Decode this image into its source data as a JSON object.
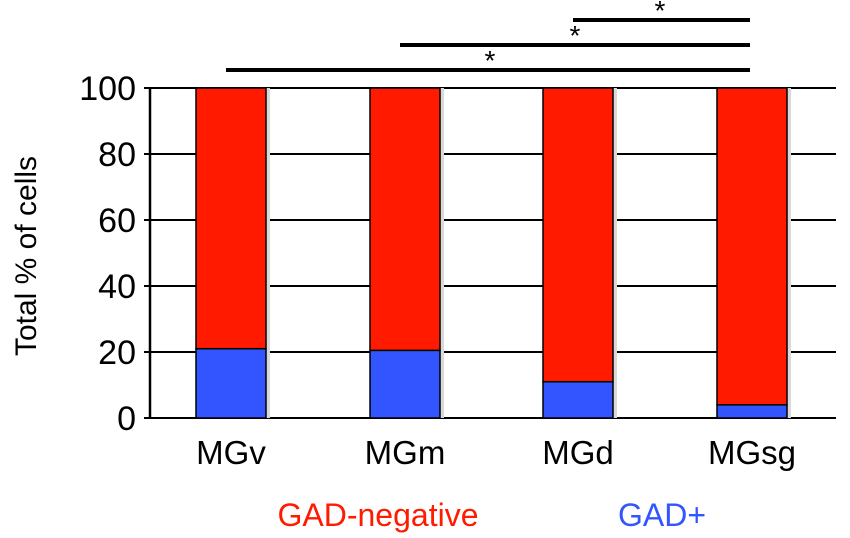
{
  "chart_data": {
    "type": "bar",
    "stacked": true,
    "categories": [
      "MGv",
      "MGm",
      "MGd",
      "MGsg"
    ],
    "series": [
      {
        "name": "GAD+",
        "color": "#3355ff",
        "values": [
          21,
          20.5,
          11,
          4
        ]
      },
      {
        "name": "GAD-negative",
        "color": "#ff1a00",
        "values": [
          79,
          79.5,
          89,
          96
        ]
      }
    ],
    "ylabel": "Total % of cells",
    "xlabel": "",
    "ylim": [
      0,
      100
    ],
    "yticks": [
      0,
      20,
      40,
      60,
      80,
      100
    ],
    "grid": true,
    "legend": [
      {
        "label": "GAD-negative",
        "color": "#ff1a00"
      },
      {
        "label": "GAD+",
        "color": "#3355ff"
      }
    ],
    "significance": [
      {
        "from": "MGd",
        "to": "MGsg",
        "label": "*"
      },
      {
        "from": "MGm",
        "to": "MGsg",
        "label": "*"
      },
      {
        "from": "MGv",
        "to": "MGsg",
        "label": "*"
      }
    ]
  }
}
